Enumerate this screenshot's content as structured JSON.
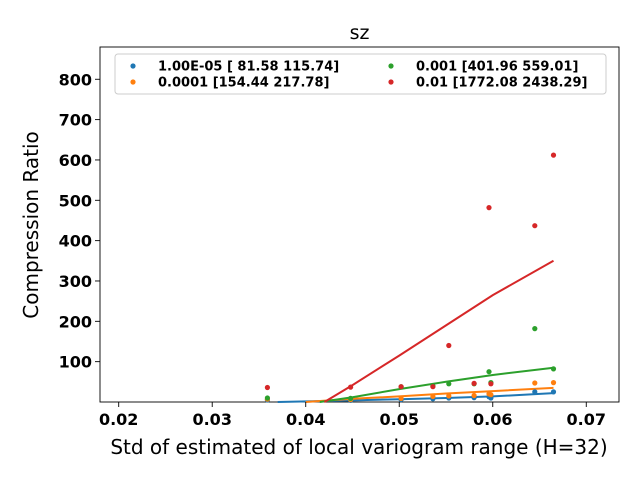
{
  "chart_data": {
    "type": "scatter",
    "title": "sz",
    "xlabel": "Std of estimated of local variogram range (H=32)",
    "ylabel": "Compression Ratio",
    "xlim": [
      0.018,
      0.0735
    ],
    "ylim": [
      0,
      880
    ],
    "xticks": [
      "0.02",
      "0.03",
      "0.04",
      "0.05",
      "0.06",
      "0.07"
    ],
    "xtick_values": [
      0.02,
      0.03,
      0.04,
      0.05,
      0.06,
      0.07
    ],
    "yticks": [
      "100",
      "200",
      "300",
      "400",
      "500",
      "600",
      "700",
      "800"
    ],
    "ytick_values": [
      100,
      200,
      300,
      400,
      500,
      600,
      700,
      800
    ],
    "legend_position": "top",
    "series": [
      {
        "name": "1.00E-05 [ 81.58 115.74]",
        "color": "#1f77b4",
        "points": [
          [
            0.0359,
            5
          ],
          [
            0.0448,
            4
          ],
          [
            0.0502,
            6
          ],
          [
            0.0536,
            8
          ],
          [
            0.0553,
            10
          ],
          [
            0.058,
            11
          ],
          [
            0.0596,
            13
          ],
          [
            0.0598,
            10
          ],
          [
            0.0645,
            25
          ],
          [
            0.0665,
            25
          ]
        ],
        "fit": [
          [
            0.037,
            0
          ],
          [
            0.045,
            4
          ],
          [
            0.05,
            7
          ],
          [
            0.055,
            10
          ],
          [
            0.06,
            14
          ],
          [
            0.0665,
            22
          ]
        ]
      },
      {
        "name": "0.0001 [154.44 217.78]",
        "color": "#ff7f0e",
        "points": [
          [
            0.0359,
            7
          ],
          [
            0.0448,
            6
          ],
          [
            0.0502,
            9
          ],
          [
            0.0536,
            14
          ],
          [
            0.0553,
            15
          ],
          [
            0.058,
            16
          ],
          [
            0.0596,
            20
          ],
          [
            0.0598,
            18
          ],
          [
            0.0645,
            47
          ],
          [
            0.0665,
            48
          ]
        ],
        "fit": [
          [
            0.04,
            0
          ],
          [
            0.045,
            8
          ],
          [
            0.05,
            14
          ],
          [
            0.055,
            21
          ],
          [
            0.06,
            27
          ],
          [
            0.0665,
            35
          ]
        ]
      },
      {
        "name": "0.001 [401.96 559.01]",
        "color": "#2ca02c",
        "points": [
          [
            0.0359,
            10
          ],
          [
            0.0448,
            9
          ],
          [
            0.0502,
            38
          ],
          [
            0.0536,
            40
          ],
          [
            0.0553,
            45
          ],
          [
            0.058,
            45
          ],
          [
            0.0596,
            75
          ],
          [
            0.0598,
            48
          ],
          [
            0.0645,
            182
          ],
          [
            0.0665,
            82
          ]
        ],
        "fit": [
          [
            0.0415,
            0
          ],
          [
            0.045,
            12
          ],
          [
            0.05,
            32
          ],
          [
            0.055,
            50
          ],
          [
            0.06,
            67
          ],
          [
            0.0665,
            85
          ]
        ]
      },
      {
        "name": "0.01 [1772.08 2438.29]",
        "color": "#d62728",
        "points": [
          [
            0.0359,
            36
          ],
          [
            0.0448,
            37
          ],
          [
            0.0502,
            38
          ],
          [
            0.0536,
            38
          ],
          [
            0.0553,
            140
          ],
          [
            0.058,
            46
          ],
          [
            0.0596,
            482
          ],
          [
            0.0598,
            45
          ],
          [
            0.0645,
            437
          ],
          [
            0.0665,
            612
          ]
        ],
        "fit": [
          [
            0.042,
            0
          ],
          [
            0.045,
            42
          ],
          [
            0.05,
            115
          ],
          [
            0.055,
            190
          ],
          [
            0.06,
            265
          ],
          [
            0.0665,
            350
          ]
        ]
      }
    ]
  }
}
